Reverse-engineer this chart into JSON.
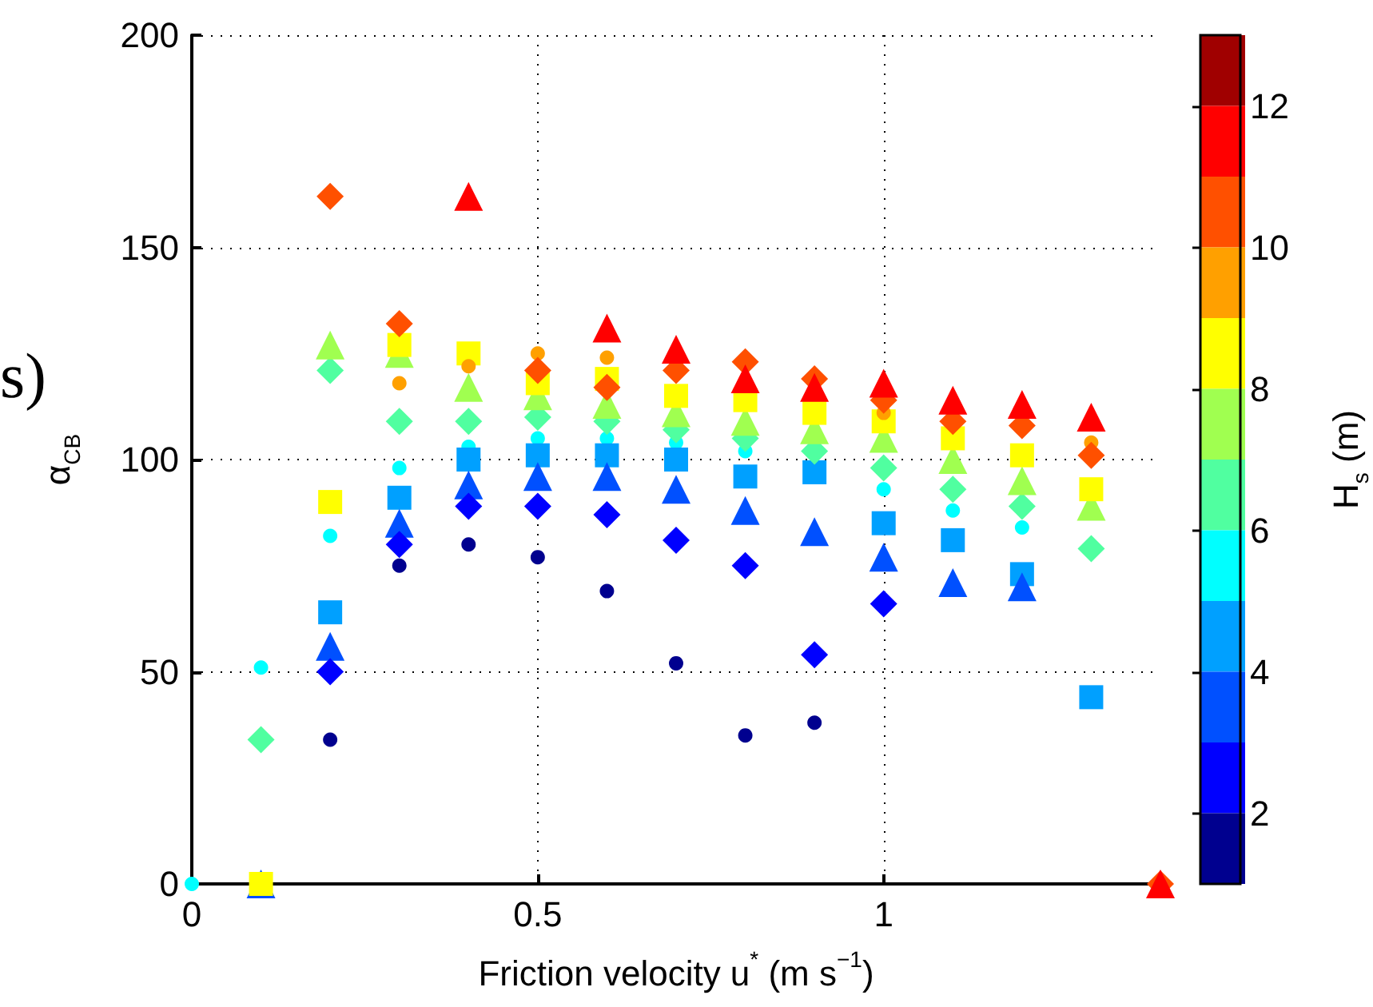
{
  "chart_data": {
    "type": "scatter",
    "xlabel": "Friction velocity u$^{*}$ (m s$^{−1}$)",
    "ylabel": "α$_{CB}$",
    "clabel": "H$_{s}$ (m)",
    "annotations": [
      "s)"
    ],
    "xlim": [
      0,
      1.4
    ],
    "xticks": [
      0,
      0.5,
      1
    ],
    "ylim": [
      0,
      200
    ],
    "yticks": [
      0,
      50,
      100,
      150,
      200
    ],
    "clim": [
      1,
      13
    ],
    "cticks": [
      2,
      4,
      6,
      8,
      10,
      12
    ],
    "grid": true,
    "series": [
      {
        "marker": "circle",
        "x": [
          0,
          0.1,
          0.2,
          0.3,
          0.4,
          0.5,
          0.6,
          0.7,
          0.8,
          1.0,
          1.1,
          1.2
        ],
        "values": [
          0,
          51,
          82,
          98,
          103,
          105,
          105,
          104,
          102,
          93,
          88,
          84
        ],
        "cvalues": [
          5.5,
          5.5,
          5.5,
          5.5,
          5.5,
          5.5,
          5.5,
          5.5,
          5.5,
          5.5,
          5.5,
          5.5
        ]
      },
      {
        "marker": "circle",
        "x": [
          0.2,
          0.3,
          0.4,
          0.5,
          0.6,
          0.7,
          0.8,
          0.9
        ],
        "values": [
          34,
          75,
          80,
          77,
          69,
          52,
          35,
          38
        ],
        "cvalues": [
          1.5,
          1.5,
          1.5,
          1.5,
          1.5,
          1.5,
          1.5,
          1.5
        ]
      },
      {
        "marker": "square",
        "x": [
          0.2,
          0.3,
          0.4,
          0.5,
          0.6,
          0.7,
          0.8,
          0.9,
          1.0,
          1.1,
          1.2,
          1.3
        ],
        "values": [
          64,
          91,
          100,
          101,
          101,
          100,
          96,
          97,
          85,
          81,
          73,
          44
        ],
        "cvalues": [
          4.5,
          4.5,
          4.5,
          4.5,
          4.5,
          4.5,
          4.5,
          4.5,
          4.5,
          4.5,
          4.5,
          4.5
        ]
      },
      {
        "marker": "triangle",
        "x": [
          0.1,
          0.2,
          0.3,
          0.4,
          0.5,
          0.6,
          0.7,
          0.8,
          0.9,
          1.0,
          1.1,
          1.2
        ],
        "values": [
          0,
          56,
          85,
          94,
          96,
          96,
          93,
          88,
          83,
          77,
          71,
          70
        ],
        "cvalues": [
          3.5,
          3.5,
          3.5,
          3.5,
          3.5,
          3.5,
          3.5,
          3.5,
          3.5,
          3.5,
          3.5,
          3.5
        ]
      },
      {
        "marker": "diamond",
        "x": [
          0.2,
          0.3,
          0.4,
          0.5,
          0.6,
          0.7,
          0.8,
          0.9,
          1.0
        ],
        "values": [
          50,
          80,
          89,
          89,
          87,
          81,
          75,
          54,
          66
        ],
        "cvalues": [
          2.5,
          2.5,
          2.5,
          2.5,
          2.5,
          2.5,
          2.5,
          2.5,
          2.5
        ]
      },
      {
        "marker": "diamond",
        "x": [
          0.1,
          0.2,
          0.3,
          0.4,
          0.5,
          0.6,
          0.7,
          0.8,
          0.9,
          1.0,
          1.1,
          1.2,
          1.3
        ],
        "values": [
          34,
          121,
          109,
          109,
          110,
          109,
          107,
          105,
          102,
          98,
          93,
          89,
          79
        ],
        "cvalues": [
          6.5,
          6.5,
          6.5,
          6.5,
          6.5,
          6.5,
          6.5,
          6.5,
          6.5,
          6.5,
          6.5,
          6.5,
          6.5
        ]
      },
      {
        "marker": "triangle",
        "x": [
          0.2,
          0.3,
          0.4,
          0.5,
          0.6,
          0.7,
          0.8,
          0.9,
          1.0,
          1.1,
          1.2,
          1.3
        ],
        "values": [
          127,
          125,
          117,
          115,
          113,
          111,
          109,
          107,
          105,
          100,
          95,
          89
        ],
        "cvalues": [
          7.5,
          7.5,
          7.5,
          7.5,
          7.5,
          7.5,
          7.5,
          7.5,
          7.5,
          7.5,
          7.5,
          7.5
        ]
      },
      {
        "marker": "square",
        "x": [
          0.1,
          0.2,
          0.3,
          0.4,
          0.5,
          0.6,
          0.7,
          0.8,
          0.9,
          1.0,
          1.1,
          1.2,
          1.3
        ],
        "values": [
          0,
          90,
          127,
          125,
          118,
          119,
          115,
          114,
          111,
          109,
          105,
          101,
          93
        ],
        "cvalues": [
          8.5,
          8.5,
          8.5,
          8.5,
          8.5,
          8.5,
          8.5,
          8.5,
          8.5,
          8.5,
          8.5,
          8.5,
          8.5
        ]
      },
      {
        "marker": "circle",
        "x": [
          0.3,
          0.4,
          0.5,
          0.6,
          1.0,
          1.3
        ],
        "values": [
          118,
          122,
          125,
          124,
          111,
          104
        ],
        "cvalues": [
          9.5,
          9.5,
          9.5,
          9.5,
          9.5,
          9.5
        ]
      },
      {
        "marker": "diamond",
        "x": [
          0.2,
          0.3,
          0.5,
          0.6,
          0.7,
          0.8,
          0.9,
          1.0,
          1.1,
          1.2,
          1.3,
          1.4
        ],
        "values": [
          162,
          132,
          121,
          117,
          121,
          123,
          119,
          114,
          109,
          108,
          101,
          0
        ],
        "cvalues": [
          10.5,
          10.5,
          10.5,
          10.5,
          10.5,
          10.5,
          10.5,
          10.5,
          10.5,
          10.5,
          10.5,
          10.5
        ]
      },
      {
        "marker": "triangle",
        "x": [
          0.4,
          0.6,
          0.7,
          0.8,
          0.9,
          1.0,
          1.1,
          1.2,
          1.3,
          1.4
        ],
        "values": [
          162,
          131,
          126,
          119,
          117,
          118,
          114,
          113,
          110,
          0
        ],
        "cvalues": [
          11.5,
          11.5,
          11.5,
          11.5,
          11.5,
          11.5,
          11.5,
          11.5,
          11.5,
          11.5
        ]
      }
    ]
  }
}
